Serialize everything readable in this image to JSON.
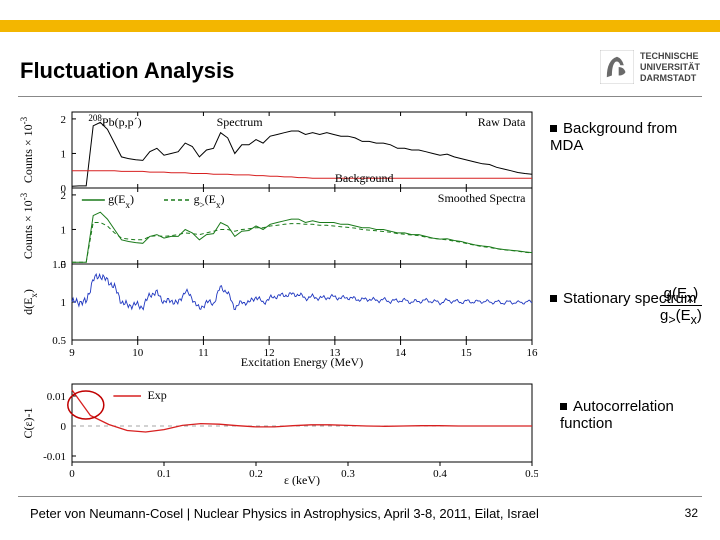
{
  "topbar": {
    "color": "#f3b600",
    "height": 12
  },
  "title": "Fluctuation Analysis",
  "logo": {
    "lines": [
      "TECHNISCHE",
      "UNIVERSITÄT",
      "DARMSTADT"
    ],
    "icon_color": "#6a6a6a"
  },
  "annotations": {
    "background": "Background from MDA",
    "stationary": "Stationary spectrum",
    "autocorr": "Autocorrelation function"
  },
  "ratio": {
    "numerator": "g(E",
    "numerator_sub": "x",
    "denominator": "g",
    "denominator_sub1": ">",
    "denominator_mid": "(E",
    "denominator_sub2": "x"
  },
  "footer": "Peter von Neumann-Cosel | Nuclear Physics in Astrophysics, April 3-8, 2011, Eilat, Israel",
  "page": "32",
  "panel12": {
    "x": {
      "min": 9,
      "max": 16,
      "ticks": [
        9,
        10,
        11,
        12,
        13,
        14,
        15,
        16
      ],
      "label": "Excitation Energy (MeV)"
    },
    "p1": {
      "ylabel": "Counts × 10",
      "ylabel_sup": "-3",
      "yticks": [
        0,
        1,
        2
      ],
      "nuclide": "208",
      "reaction": "Pb(p,p´)",
      "legend_right": "Raw Data",
      "label_spectrum": "Spectrum",
      "label_background": "Background",
      "spectrum_color": "#000000",
      "background_color": "#d72020",
      "spectrum_y": [
        0.05,
        0.06,
        0.06,
        1.8,
        1.9,
        1.7,
        1.3,
        0.9,
        0.85,
        0.82,
        0.8,
        1.05,
        1.15,
        0.95,
        1.0,
        1.05,
        1.3,
        1.2,
        0.9,
        1.1,
        1.15,
        1.6,
        1.45,
        1.0,
        1.25,
        1.25,
        1.4,
        1.3,
        1.5,
        1.55,
        1.6,
        1.65,
        1.65,
        1.55,
        1.6,
        1.55,
        1.6,
        1.55,
        1.5,
        1.5,
        1.45,
        1.35,
        1.35,
        1.3,
        1.3,
        1.25,
        1.15,
        1.15,
        1.1,
        1.1,
        1.05,
        1.0,
        0.95,
        0.98,
        0.9,
        0.85,
        0.8,
        0.75,
        0.7,
        0.68,
        0.6,
        0.55,
        0.5,
        0.45,
        0.42,
        0.4
      ],
      "bg_y": [
        0.5,
        0.5,
        0.5,
        0.5,
        0.5,
        0.5,
        0.5,
        0.48,
        0.48,
        0.48,
        0.48,
        0.46,
        0.46,
        0.46,
        0.44,
        0.44,
        0.44,
        0.42,
        0.42,
        0.42,
        0.4,
        0.4,
        0.4,
        0.38,
        0.38,
        0.38,
        0.36,
        0.36,
        0.34,
        0.34,
        0.32,
        0.32,
        0.3,
        0.3,
        0.28,
        0.28,
        0.28,
        0.28,
        0.28,
        0.28,
        0.28,
        0.28,
        0.28,
        0.28,
        0.28,
        0.28,
        0.28,
        0.28,
        0.28,
        0.28,
        0.28,
        0.28,
        0.28,
        0.28,
        0.28,
        0.28,
        0.28,
        0.28,
        0.28,
        0.28,
        0.28,
        0.28,
        0.28,
        0.28,
        0.28,
        0.28
      ]
    },
    "p2": {
      "ylabel": "Counts × 10",
      "ylabel_sup": "-3",
      "yticks": [
        0,
        1,
        2
      ],
      "legend_left1": "g(E",
      "legend_left2": "g",
      "legend_right": "Smoothed Spectra",
      "g_color": "#1a7a1a",
      "gdash_color": "#1a7a1a",
      "g_y": [
        0.05,
        0.05,
        0.05,
        1.4,
        1.5,
        1.3,
        1.0,
        0.7,
        0.65,
        0.62,
        0.6,
        0.8,
        0.85,
        0.75,
        0.8,
        0.8,
        1.0,
        0.9,
        0.7,
        0.85,
        0.88,
        1.2,
        1.1,
        0.8,
        0.95,
        0.97,
        1.1,
        1.0,
        1.15,
        1.2,
        1.25,
        1.3,
        1.3,
        1.2,
        1.25,
        1.2,
        1.2,
        1.2,
        1.15,
        1.15,
        1.1,
        1.05,
        1.05,
        1.0,
        1.0,
        0.95,
        0.9,
        0.9,
        0.85,
        0.85,
        0.8,
        0.75,
        0.72,
        0.73,
        0.68,
        0.65,
        0.6,
        0.55,
        0.52,
        0.5,
        0.45,
        0.42,
        0.4,
        0.38,
        0.35,
        0.33
      ],
      "gdash_y": [
        0.05,
        0.05,
        0.05,
        1.2,
        1.2,
        1.1,
        0.9,
        0.75,
        0.72,
        0.7,
        0.7,
        0.8,
        0.82,
        0.8,
        0.82,
        0.85,
        0.9,
        0.88,
        0.85,
        0.9,
        0.95,
        1.0,
        1.0,
        0.95,
        1.0,
        1.02,
        1.05,
        1.05,
        1.1,
        1.12,
        1.15,
        1.17,
        1.17,
        1.15,
        1.15,
        1.12,
        1.12,
        1.1,
        1.08,
        1.06,
        1.04,
        1.0,
        0.98,
        0.96,
        0.94,
        0.92,
        0.88,
        0.86,
        0.84,
        0.82,
        0.78,
        0.74,
        0.72,
        0.7,
        0.66,
        0.63,
        0.58,
        0.54,
        0.5,
        0.48,
        0.44,
        0.41,
        0.39,
        0.37,
        0.34,
        0.32
      ]
    },
    "p3": {
      "ylabel": "d(E",
      "ylabel_sub": "x",
      "yticks": [
        0.5,
        1,
        1.5
      ],
      "color": "#2038c0",
      "y": [
        1.0,
        1.0,
        1.0,
        1.3,
        1.35,
        1.28,
        1.2,
        1.0,
        0.95,
        0.97,
        0.93,
        1.1,
        1.12,
        1.0,
        1.02,
        0.98,
        1.15,
        1.05,
        0.9,
        1.0,
        0.98,
        1.2,
        1.12,
        0.92,
        1.0,
        0.99,
        1.07,
        0.99,
        1.05,
        1.08,
        1.09,
        1.1,
        1.1,
        1.05,
        1.07,
        1.05,
        1.06,
        1.07,
        1.05,
        1.06,
        1.04,
        1.03,
        1.04,
        1.02,
        1.03,
        1.01,
        1.02,
        1.02,
        1.0,
        1.01,
        1.02,
        1.01,
        0.99,
        1.02,
        1.01,
        1.0,
        1.01,
        1.0,
        1.01,
        1.0,
        1.0,
        0.99,
        1.0,
        0.99,
        1.0,
        1.0
      ]
    }
  },
  "panel4": {
    "x": {
      "min": 0,
      "max": 0.5,
      "ticks": [
        0,
        0.1,
        0.2,
        0.3,
        0.4,
        0.5
      ],
      "label": "ε (keV)"
    },
    "ylabel": "C(ε)-1",
    "yticks": [
      -0.01,
      0,
      0.01
    ],
    "legend": "Exp",
    "color": "#d72020",
    "circle_color": "#c00000",
    "y": [
      0.012,
      0.0035,
      0.0005,
      -0.0015,
      -0.002,
      -0.0012,
      0.0002,
      0.0008,
      0.0006,
      0.0001,
      -0.0003,
      -0.0003,
      0.0001,
      0.0004,
      0.0004,
      0.0002,
      0.0,
      -0.0001,
      0.0,
      0.0001,
      0.0001,
      0.0,
      0.0,
      0.0,
      0.0,
      0.0
    ]
  }
}
